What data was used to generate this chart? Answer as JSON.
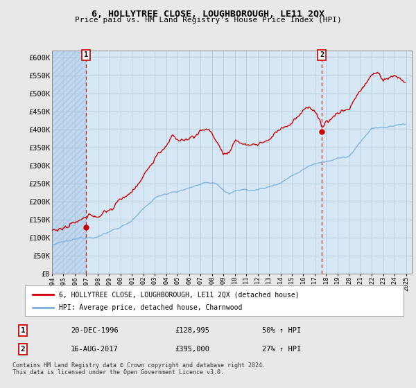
{
  "title": "6, HOLLYTREE CLOSE, LOUGHBOROUGH, LE11 2QX",
  "subtitle": "Price paid vs. HM Land Registry's House Price Index (HPI)",
  "legend_line1": "6, HOLLYTREE CLOSE, LOUGHBOROUGH, LE11 2QX (detached house)",
  "legend_line2": "HPI: Average price, detached house, Charnwood",
  "sale1_date": "20-DEC-1996",
  "sale1_price": "£128,995",
  "sale1_hpi": "50% ↑ HPI",
  "sale1_year": 1996.97,
  "sale1_value": 128995,
  "sale2_date": "16-AUG-2017",
  "sale2_price": "£395,000",
  "sale2_hpi": "27% ↑ HPI",
  "sale2_year": 2017.62,
  "sale2_value": 395000,
  "ylim": [
    0,
    620000
  ],
  "xlim_start": 1994.0,
  "xlim_end": 2025.5,
  "price_color": "#cc0000",
  "hpi_color": "#7aaddb",
  "background_color": "#e8e8e8",
  "plot_bg_color": "#d6e8f5",
  "hatch_color": "#c0d8ee",
  "grid_color": "#b0c8dc",
  "footer": "Contains HM Land Registry data © Crown copyright and database right 2024.\nThis data is licensed under the Open Government Licence v3.0.",
  "yticks": [
    0,
    50000,
    100000,
    150000,
    200000,
    250000,
    300000,
    350000,
    400000,
    450000,
    500000,
    550000,
    600000
  ],
  "ytick_labels": [
    "£0",
    "£50K",
    "£100K",
    "£150K",
    "£200K",
    "£250K",
    "£300K",
    "£350K",
    "£400K",
    "£450K",
    "£500K",
    "£550K",
    "£600K"
  ]
}
